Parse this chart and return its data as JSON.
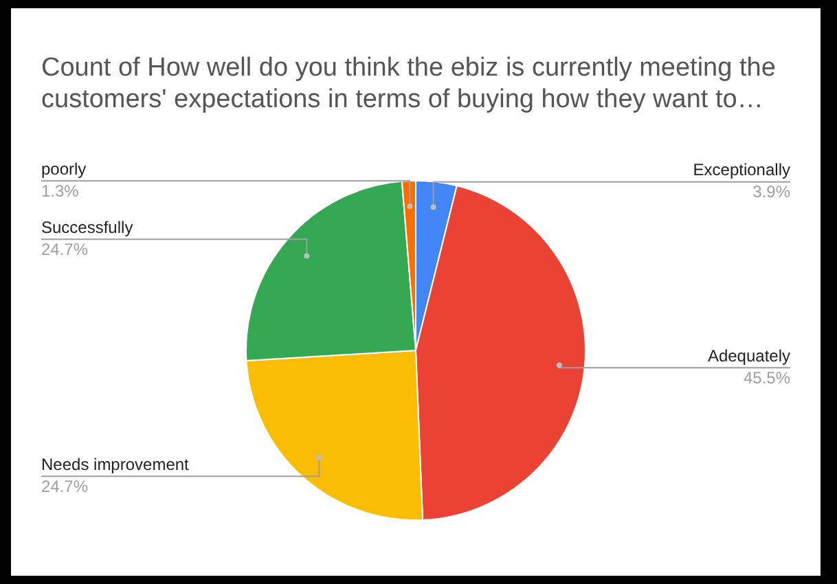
{
  "chart_data": {
    "type": "pie",
    "title": "Count of How well do you think the ebiz is currently meeting the customers' expectations in terms of buying how they want to…",
    "categories": [
      "Exceptionally",
      "Adequately",
      "Needs improvement",
      "Successfully",
      "poorly"
    ],
    "values": [
      3.9,
      45.5,
      24.7,
      24.7,
      1.3
    ],
    "value_labels": [
      "3.9%",
      "45.5%",
      "24.7%",
      "24.7%",
      "1.3%"
    ],
    "colors": [
      "#4285f4",
      "#ea4335",
      "#fbbc04",
      "#34a853",
      "#ff6d01"
    ],
    "legend": false
  }
}
